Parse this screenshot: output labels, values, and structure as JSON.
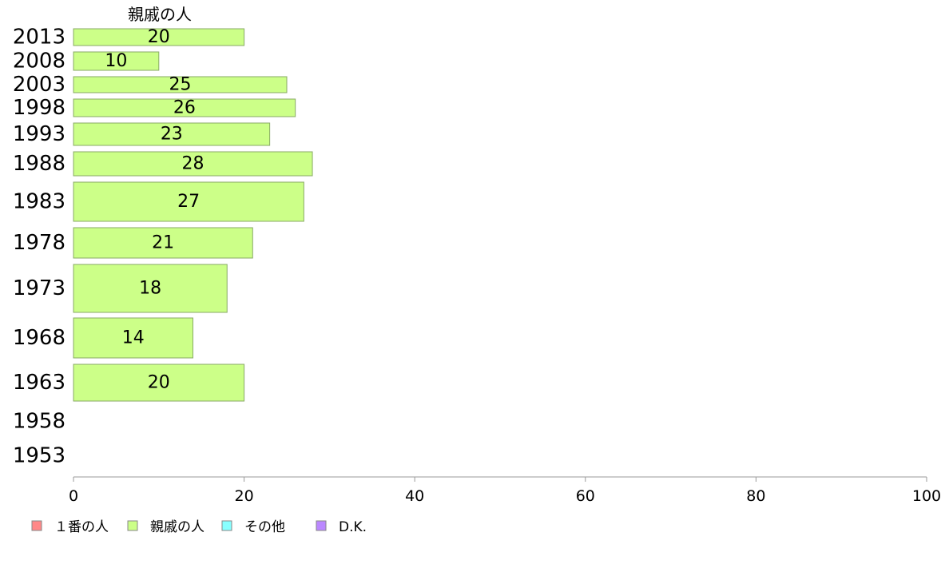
{
  "chart_data": {
    "type": "bar",
    "orientation": "horizontal",
    "title": "親戚の人",
    "categories": [
      "2013",
      "2008",
      "2003",
      "1998",
      "1993",
      "1988",
      "1983",
      "1978",
      "1973",
      "1968",
      "1963",
      "1958",
      "1953"
    ],
    "series": [
      {
        "name": "親戚の人",
        "color": "#ccff88",
        "values": [
          20,
          10,
          25,
          26,
          23,
          28,
          27,
          21,
          18,
          14,
          20,
          null,
          null
        ]
      }
    ],
    "xlim": [
      0,
      100
    ],
    "xticks": [
      0,
      20,
      40,
      60,
      80,
      100
    ],
    "grid": false,
    "legend_position": "bottom-left",
    "legend": [
      {
        "label": "１番の人",
        "color": "#ff8888"
      },
      {
        "label": "親戚の人",
        "color": "#ccff88"
      },
      {
        "label": "その他",
        "color": "#88ffff"
      },
      {
        "label": "D.K.",
        "color": "#bb88ff"
      }
    ]
  }
}
